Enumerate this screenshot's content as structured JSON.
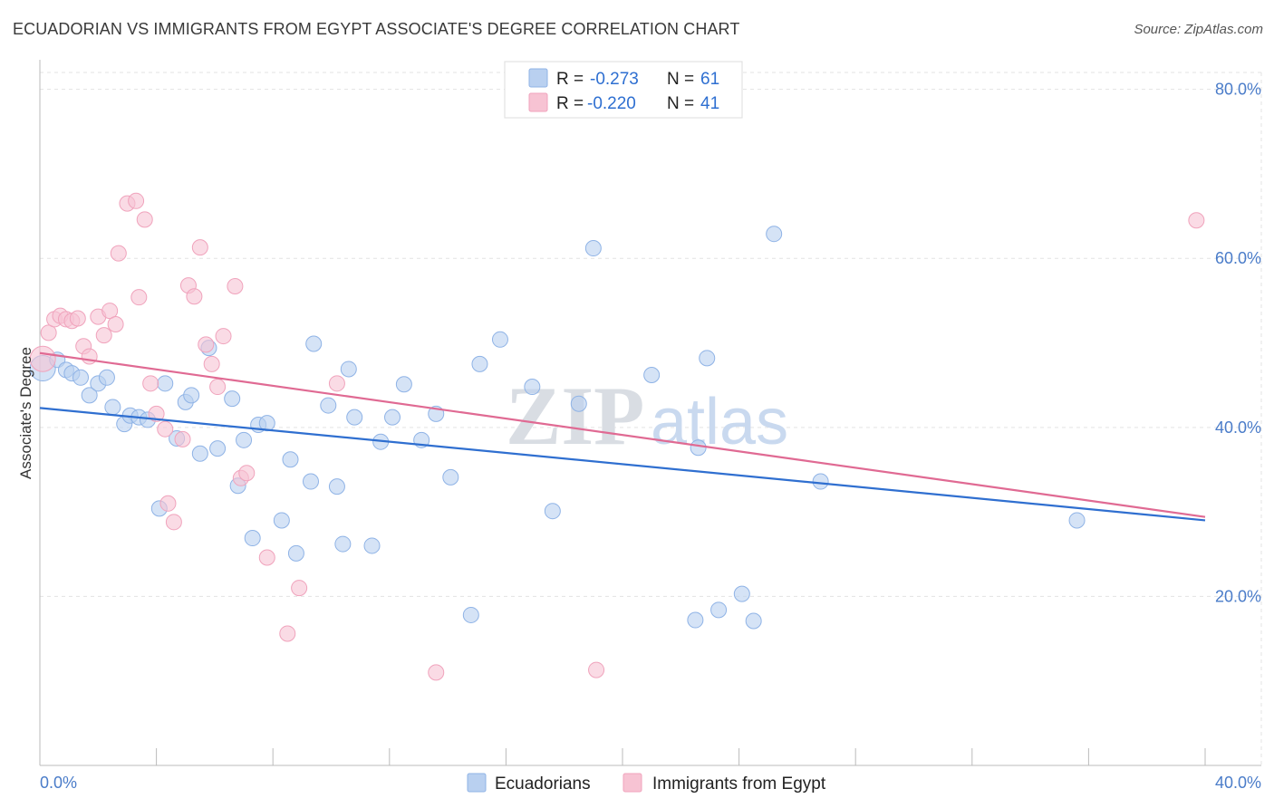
{
  "title": "ECUADORIAN VS IMMIGRANTS FROM EGYPT ASSOCIATE'S DEGREE CORRELATION CHART",
  "source": "Source: ZipAtlas.com",
  "watermark": {
    "zip": "ZIP",
    "atlas": "atlas"
  },
  "colors": {
    "blue_fill": "#b9d0f0",
    "blue_stroke": "#8fb3e6",
    "blue_line": "#2f6fd0",
    "pink_fill": "#f7c3d3",
    "pink_stroke": "#f0a3bc",
    "pink_line": "#e06a93",
    "grid": "#e3e3e3",
    "tick_text": "#4a7cc9"
  },
  "legend_top": [
    {
      "r_label": "R =",
      "r_value": "-0.273",
      "n_label": "N =",
      "n_value": "61",
      "series": "Ecuadorians"
    },
    {
      "r_label": "R =",
      "r_value": "-0.220",
      "n_label": "N =",
      "n_value": "41",
      "series": "Immigrants from Egypt"
    }
  ],
  "chart_data": {
    "type": "scatter",
    "title": "ECUADORIAN VS IMMIGRANTS FROM EGYPT ASSOCIATE'S DEGREE CORRELATION CHART",
    "xlabel": "",
    "ylabel": "Associate's Degree",
    "xlim": [
      0,
      40
    ],
    "ylim": [
      0,
      82
    ],
    "x_tick_labels": [
      "0.0%",
      "40.0%"
    ],
    "y_ticks": [
      20,
      40,
      60,
      80
    ],
    "y_tick_labels": [
      "20.0%",
      "40.0%",
      "60.0%",
      "80.0%"
    ],
    "grid": true,
    "legend_position": "top-center",
    "series": [
      {
        "name": "Ecuadorians",
        "color": "#b9d0f0",
        "trend": {
          "x": [
            0,
            40
          ],
          "y": [
            42.3,
            29.0
          ]
        },
        "points": [
          [
            0.1,
            47.0
          ],
          [
            0.6,
            48.0
          ],
          [
            0.9,
            46.8
          ],
          [
            1.1,
            46.4
          ],
          [
            1.4,
            45.9
          ],
          [
            1.7,
            43.8
          ],
          [
            2.0,
            45.2
          ],
          [
            2.3,
            45.9
          ],
          [
            2.5,
            42.4
          ],
          [
            2.9,
            40.4
          ],
          [
            3.1,
            41.4
          ],
          [
            3.4,
            41.2
          ],
          [
            3.7,
            40.9
          ],
          [
            4.1,
            30.4
          ],
          [
            4.3,
            45.2
          ],
          [
            4.7,
            38.7
          ],
          [
            5.0,
            43.0
          ],
          [
            5.2,
            43.8
          ],
          [
            5.5,
            36.9
          ],
          [
            5.8,
            49.4
          ],
          [
            6.1,
            37.5
          ],
          [
            6.6,
            43.4
          ],
          [
            6.8,
            33.1
          ],
          [
            7.0,
            38.5
          ],
          [
            7.3,
            26.9
          ],
          [
            7.5,
            40.3
          ],
          [
            7.8,
            40.5
          ],
          [
            8.3,
            29.0
          ],
          [
            8.6,
            36.2
          ],
          [
            8.8,
            25.1
          ],
          [
            9.3,
            33.6
          ],
          [
            9.4,
            49.9
          ],
          [
            9.9,
            42.6
          ],
          [
            10.2,
            33.0
          ],
          [
            10.4,
            26.2
          ],
          [
            10.6,
            46.9
          ],
          [
            10.8,
            41.2
          ],
          [
            11.4,
            26.0
          ],
          [
            11.7,
            38.3
          ],
          [
            12.1,
            41.2
          ],
          [
            12.5,
            45.1
          ],
          [
            13.1,
            38.5
          ],
          [
            13.6,
            41.6
          ],
          [
            14.1,
            34.1
          ],
          [
            14.8,
            17.8
          ],
          [
            15.1,
            47.5
          ],
          [
            15.8,
            50.4
          ],
          [
            16.9,
            44.8
          ],
          [
            17.6,
            30.1
          ],
          [
            18.5,
            42.8
          ],
          [
            19.0,
            61.2
          ],
          [
            21.0,
            46.2
          ],
          [
            22.5,
            17.2
          ],
          [
            22.6,
            37.6
          ],
          [
            22.9,
            48.2
          ],
          [
            23.3,
            18.4
          ],
          [
            24.1,
            20.3
          ],
          [
            24.5,
            17.1
          ],
          [
            25.2,
            62.9
          ],
          [
            26.8,
            33.6
          ],
          [
            35.6,
            29.0
          ]
        ]
      },
      {
        "name": "Immigrants from Egypt",
        "color": "#f7c3d3",
        "trend": {
          "x": [
            0,
            40
          ],
          "y": [
            48.8,
            29.4
          ]
        },
        "points": [
          [
            0.1,
            48.1
          ],
          [
            0.3,
            51.2
          ],
          [
            0.5,
            52.8
          ],
          [
            0.7,
            53.2
          ],
          [
            0.9,
            52.8
          ],
          [
            1.1,
            52.6
          ],
          [
            1.3,
            52.9
          ],
          [
            1.5,
            49.6
          ],
          [
            1.7,
            48.4
          ],
          [
            2.0,
            53.1
          ],
          [
            2.2,
            50.9
          ],
          [
            2.4,
            53.8
          ],
          [
            2.6,
            52.2
          ],
          [
            2.7,
            60.6
          ],
          [
            3.0,
            66.5
          ],
          [
            3.3,
            66.8
          ],
          [
            3.4,
            55.4
          ],
          [
            3.6,
            64.6
          ],
          [
            3.8,
            45.2
          ],
          [
            4.0,
            41.6
          ],
          [
            4.3,
            39.8
          ],
          [
            4.4,
            31.0
          ],
          [
            4.6,
            28.8
          ],
          [
            4.9,
            38.6
          ],
          [
            5.1,
            56.8
          ],
          [
            5.3,
            55.5
          ],
          [
            5.5,
            61.3
          ],
          [
            5.7,
            49.8
          ],
          [
            5.9,
            47.5
          ],
          [
            6.1,
            44.8
          ],
          [
            6.3,
            50.8
          ],
          [
            6.7,
            56.7
          ],
          [
            6.9,
            34.0
          ],
          [
            7.1,
            34.6
          ],
          [
            7.8,
            24.6
          ],
          [
            8.5,
            15.6
          ],
          [
            8.9,
            21.0
          ],
          [
            10.2,
            45.2
          ],
          [
            13.6,
            11.0
          ],
          [
            19.1,
            11.3
          ],
          [
            39.7,
            64.5
          ]
        ]
      }
    ]
  }
}
